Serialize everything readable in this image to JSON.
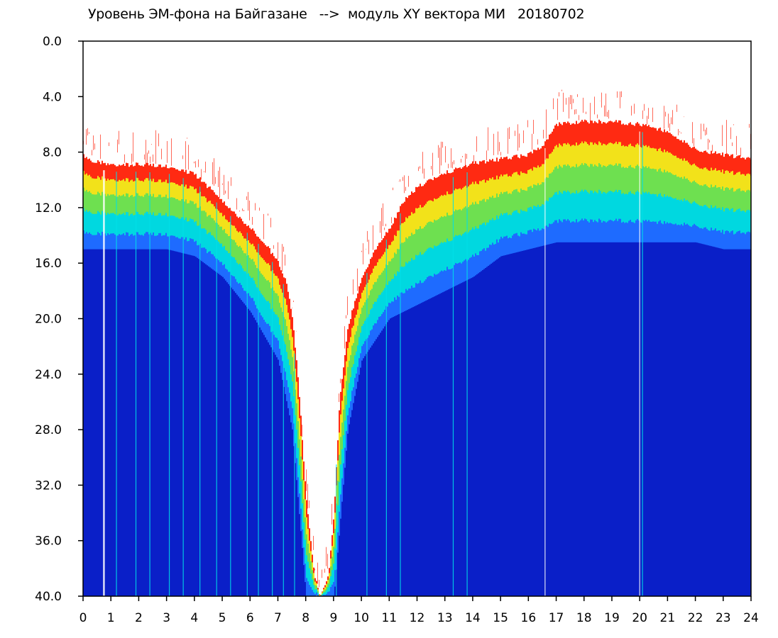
{
  "chart_data": {
    "type": "heatmap",
    "title": "Уровень ЭМ-фона на Байгазане   -->  модуль XY вектора МИ   20180702",
    "x_ticks": [
      "0",
      "1",
      "2",
      "3",
      "4",
      "5",
      "6",
      "7",
      "8",
      "9",
      "10",
      "11",
      "12",
      "13",
      "14",
      "15",
      "16",
      "17",
      "18",
      "19",
      "20",
      "21",
      "22",
      "23",
      "24"
    ],
    "y_ticks": [
      "0.0",
      "4.0",
      "8.0",
      "12.0",
      "16.0",
      "20.0",
      "24.0",
      "28.0",
      "32.0",
      "36.0",
      "40.0"
    ],
    "xlim": [
      0,
      24
    ],
    "ylim": [
      0,
      40
    ],
    "y_inverted": true,
    "colormap": [
      "#0a1fc8",
      "#1e6bff",
      "#00d8e0",
      "#6ee050",
      "#f2e21a",
      "#ff2a12"
    ],
    "background": "#ffffff",
    "upper_edge": {
      "x": [
        0,
        0.3,
        1,
        2,
        3,
        4,
        5,
        6,
        6.5,
        7,
        7.3,
        7.5,
        7.7,
        8.0,
        8.3,
        8.5,
        8.8,
        9.0,
        9.2,
        9.5,
        10,
        10.5,
        11,
        11.5,
        12,
        13,
        14,
        15,
        16,
        16.5,
        17,
        18,
        19,
        20,
        21,
        22,
        23,
        24
      ],
      "y": [
        8.3,
        8.6,
        8.9,
        8.9,
        9.0,
        9.6,
        11.5,
        13.5,
        14.5,
        16.0,
        17.5,
        20.0,
        24.0,
        33.0,
        38.5,
        40.0,
        38.5,
        34.0,
        26.0,
        20.5,
        17.0,
        15.0,
        13.5,
        11.5,
        10.5,
        9.5,
        8.8,
        8.5,
        8.2,
        7.5,
        6.0,
        5.8,
        5.8,
        6.0,
        6.5,
        7.8,
        8.2,
        8.5
      ]
    },
    "blue_onset": {
      "x": [
        0,
        1,
        2,
        3,
        4,
        5,
        6,
        7,
        7.5,
        8,
        8.5,
        9,
        9.5,
        10,
        11,
        12,
        13,
        14,
        15,
        16,
        17,
        18,
        19,
        20,
        21,
        22,
        23,
        24
      ],
      "y": [
        15.0,
        15.0,
        15.0,
        15.0,
        15.5,
        17.0,
        19.5,
        23.0,
        28.0,
        40.0,
        40.0,
        40.0,
        28.0,
        23.0,
        20.0,
        19.0,
        18.0,
        17.0,
        15.5,
        15.0,
        14.5,
        14.5,
        14.5,
        14.5,
        14.5,
        14.5,
        15.0,
        15.0
      ]
    },
    "vertical_streaks_x": [
      0.75,
      1.2,
      1.9,
      2.4,
      3.1,
      3.6,
      4.2,
      4.8,
      5.3,
      5.9,
      6.3,
      6.8,
      7.2,
      7.6,
      8.5,
      9.1,
      10.2,
      10.9,
      11.4,
      13.3,
      13.8,
      16.6,
      20.0,
      20.1
    ]
  }
}
